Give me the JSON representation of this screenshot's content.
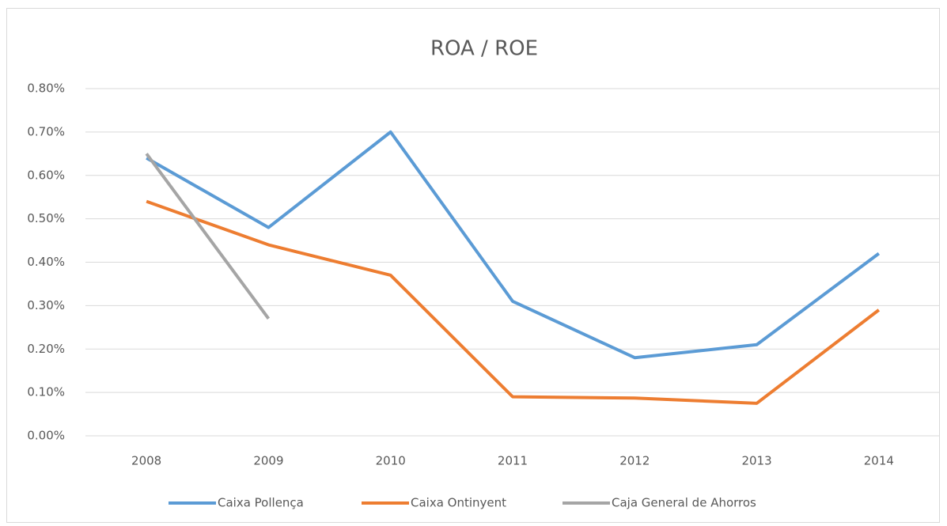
{
  "chart_data": {
    "type": "line",
    "title": "ROA / ROE",
    "categories": [
      "2008",
      "2009",
      "2010",
      "2011",
      "2012",
      "2013",
      "2014"
    ],
    "series": [
      {
        "name": "Caixa Pollença",
        "color": "#5b9bd5",
        "values": [
          0.64,
          0.48,
          0.7,
          0.31,
          0.18,
          0.21,
          0.42
        ]
      },
      {
        "name": "Caixa Ontinyent",
        "color": "#ed7d31",
        "values": [
          0.54,
          0.44,
          0.37,
          0.09,
          0.087,
          0.075,
          0.29
        ]
      },
      {
        "name": "Caja General de Ahorros",
        "color": "#a5a5a5",
        "values": [
          0.65,
          0.27,
          null,
          null,
          null,
          null,
          null
        ]
      }
    ],
    "ylim": [
      0,
      0.8
    ],
    "yticks": [
      {
        "value": 0,
        "label": "0.00%"
      },
      {
        "value": 0.1,
        "label": "0.10%"
      },
      {
        "value": 0.2,
        "label": "0.20%"
      },
      {
        "value": 0.3,
        "label": "0.30%"
      },
      {
        "value": 0.4,
        "label": "0.40%"
      },
      {
        "value": 0.5,
        "label": "0.50%"
      },
      {
        "value": 0.6,
        "label": "0.60%"
      },
      {
        "value": 0.7,
        "label": "0.70%"
      },
      {
        "value": 0.8,
        "label": "0.80%"
      }
    ],
    "grid": true,
    "legend": "bottom"
  }
}
